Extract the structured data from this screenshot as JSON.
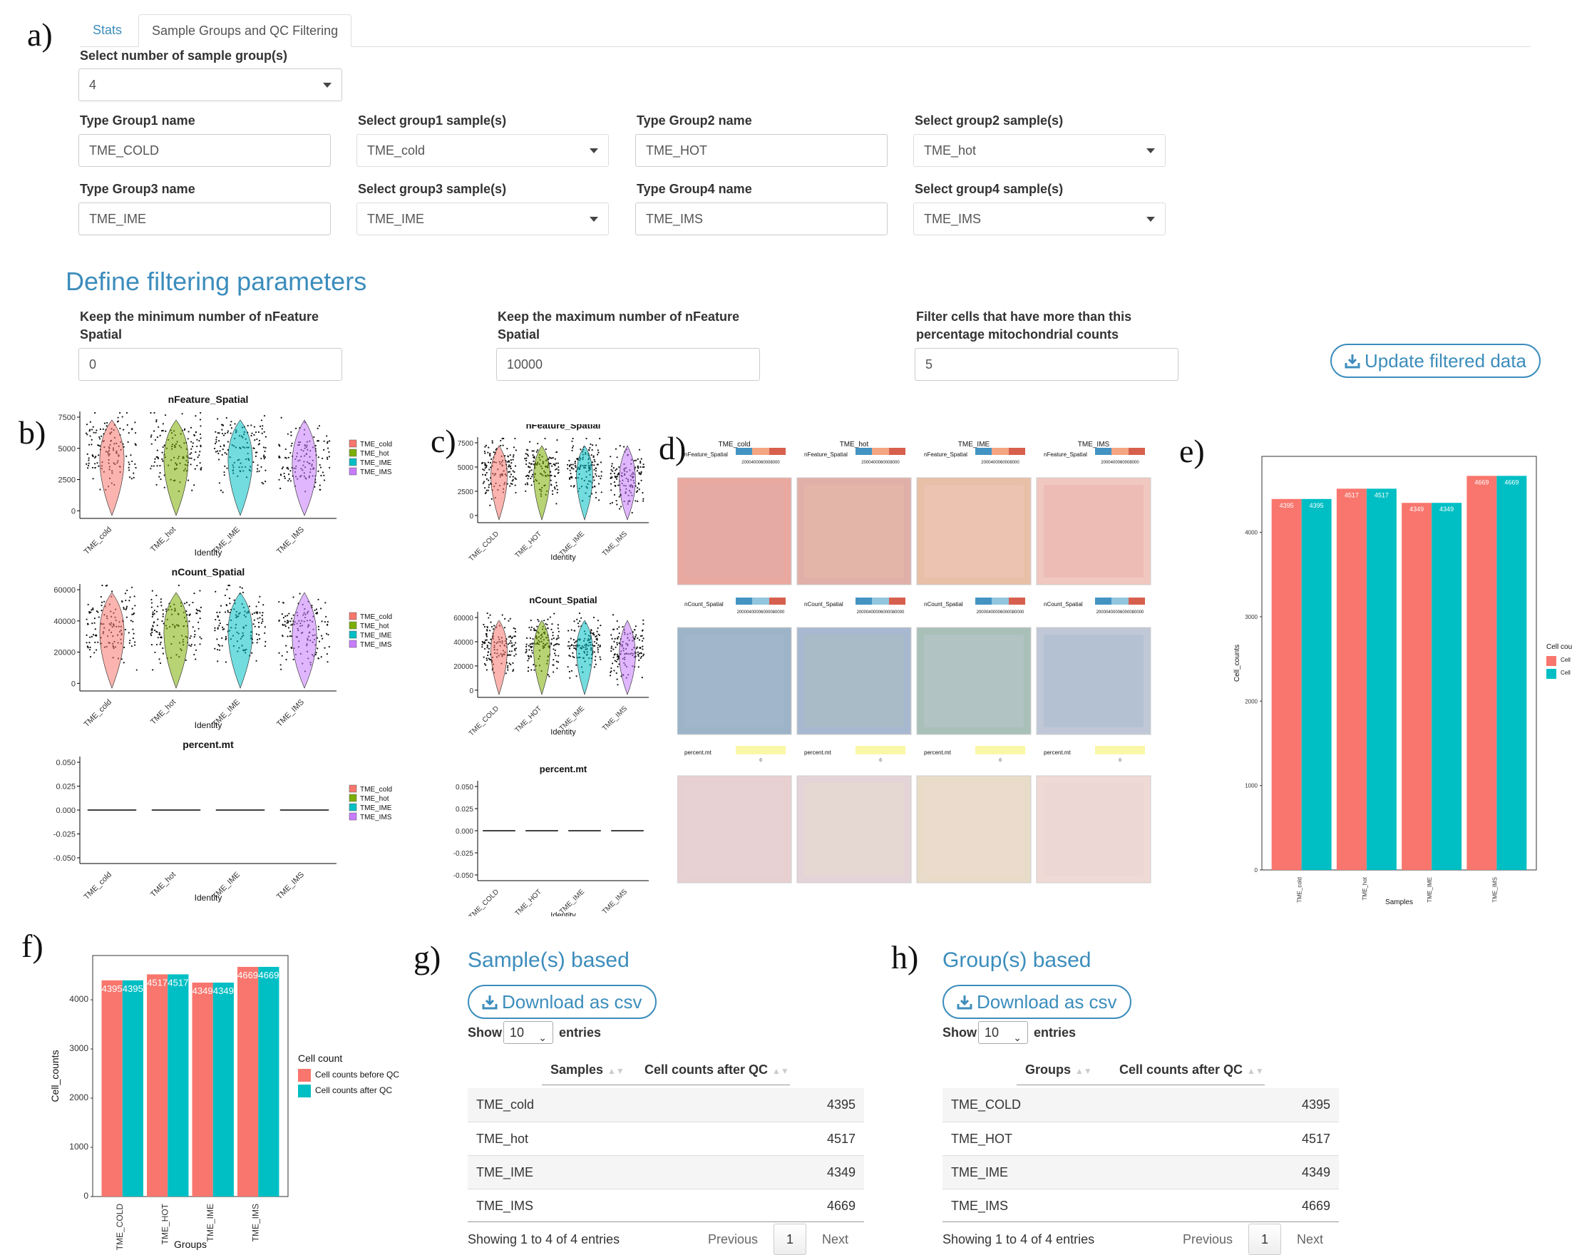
{
  "panel_labels": {
    "a": "a)",
    "b": "b)",
    "c": "c)",
    "d": "d)",
    "e": "e)",
    "f": "f)",
    "g": "g)",
    "h": "h)"
  },
  "tabs": [
    {
      "label": "Stats"
    },
    {
      "label": "Sample Groups and QC Filtering"
    }
  ],
  "group_count": {
    "label": "Select number of sample group(s)",
    "value": "4"
  },
  "groups": [
    {
      "name_label": "Type Group1 name",
      "name_value": "TME_COLD",
      "sample_label": "Select group1 sample(s)",
      "sample_value": "TME_cold"
    },
    {
      "name_label": "Type Group2 name",
      "name_value": "TME_HOT",
      "sample_label": "Select group2 sample(s)",
      "sample_value": "TME_hot"
    },
    {
      "name_label": "Type Group3 name",
      "name_value": "TME_IME",
      "sample_label": "Select group3 sample(s)",
      "sample_value": "TME_IME"
    },
    {
      "name_label": "Type Group4 name",
      "name_value": "TME_IMS",
      "sample_label": "Select group4 sample(s)",
      "sample_value": "TME_IMS"
    }
  ],
  "filtering": {
    "heading": "Define filtering parameters",
    "min_label_1": "Keep the minimum number of nFeature",
    "min_label_2": "Spatial",
    "min_value": "0",
    "max_label_1": "Keep the maximum number of nFeature",
    "max_label_2": "Spatial",
    "max_value": "10000",
    "mt_label_1": "Filter cells that have more than this",
    "mt_label_2": "percentage mitochondrial counts",
    "mt_value": "5",
    "update_button": "Update filtered data"
  },
  "violin_b": {
    "legend": [
      "TME_cold",
      "TME_hot",
      "TME_IME",
      "TME_IMS"
    ],
    "colors": [
      "#F8766D",
      "#7CAE00",
      "#00BFC4",
      "#C77CFF"
    ],
    "xlabel": "Identity",
    "plots": [
      {
        "title": "nFeature_Spatial",
        "ticks": [
          "7500",
          "5000",
          "2500",
          "0"
        ]
      },
      {
        "title": "nCount_Spatial",
        "ticks": [
          "60000",
          "40000",
          "20000",
          "0"
        ]
      },
      {
        "title": "percent.mt",
        "ticks": [
          "0.050",
          "0.025",
          "0.000",
          "-0.025",
          "-0.050"
        ]
      }
    ]
  },
  "violin_c": {
    "categories": [
      "TME_COLD",
      "TME_HOT",
      "TME_IME",
      "TME_IMS"
    ],
    "xlabel": "Identity",
    "plots": [
      {
        "title": "nFeature_Spatial",
        "ticks": [
          "7500",
          "5000",
          "2500",
          "0"
        ]
      },
      {
        "title": "nCount_Spatial",
        "ticks": [
          "60000",
          "40000",
          "20000",
          "0"
        ]
      },
      {
        "title": "percent.mt",
        "ticks": [
          "0.050",
          "0.025",
          "0.000",
          "-0.025",
          "-0.050"
        ]
      }
    ]
  },
  "spatial_d": {
    "samples": [
      "TME_cold",
      "TME_hot",
      "TME_IME",
      "TME_IMS"
    ],
    "rows": [
      {
        "feature": "nFeature_Spatial",
        "scale": "2000400060008000"
      },
      {
        "feature": "nCount_Spatial",
        "scale": "20000400006000080000"
      },
      {
        "feature": "percent.mt",
        "scale": "0"
      }
    ]
  },
  "chart_data": [
    {
      "type": "bar",
      "panel": "e",
      "categories": [
        "TME_cold",
        "TME_hot",
        "TME_IME",
        "TME_IMS"
      ],
      "series": [
        {
          "name": "Cell counts before QC",
          "values": [
            4395,
            4517,
            4349,
            4669
          ],
          "color": "#F8766D"
        },
        {
          "name": "Cell counts after QC",
          "values": [
            4395,
            4517,
            4349,
            4669
          ],
          "color": "#00BFC4"
        }
      ],
      "xlabel": "Samples",
      "ylabel": "Cell_counts",
      "legend_title": "Cell count",
      "yticks": [
        "0",
        "1000",
        "2000",
        "3000",
        "4000"
      ],
      "ylim": [
        0,
        4900
      ],
      "legend": "right"
    },
    {
      "type": "bar",
      "panel": "f",
      "categories": [
        "TME_COLD",
        "TME_HOT",
        "TME_IME",
        "TME_IMS"
      ],
      "series": [
        {
          "name": "Cell counts before QC",
          "values": [
            4395,
            4517,
            4349,
            4669
          ],
          "color": "#F8766D"
        },
        {
          "name": "Cell counts after QC",
          "values": [
            4395,
            4517,
            4349,
            4669
          ],
          "color": "#00BFC4"
        }
      ],
      "xlabel": "Groups",
      "ylabel": "Cell_counts",
      "legend_title": "Cell count",
      "yticks": [
        "0",
        "1000",
        "2000",
        "3000",
        "4000"
      ],
      "ylim": [
        0,
        4900
      ],
      "legend": "right"
    }
  ],
  "sample_table": {
    "title": "Sample(s) based",
    "download": "Download as csv",
    "show": "Show",
    "entries_value": "10",
    "entries": "entries",
    "headers": [
      "Samples",
      "Cell counts after QC"
    ],
    "rows": [
      [
        "TME_cold",
        "4395"
      ],
      [
        "TME_hot",
        "4517"
      ],
      [
        "TME_IME",
        "4349"
      ],
      [
        "TME_IMS",
        "4669"
      ]
    ],
    "info": "Showing 1 to 4 of 4 entries",
    "prev": "Previous",
    "page": "1",
    "next": "Next"
  },
  "group_table": {
    "title": "Group(s) based",
    "download": "Download as csv",
    "show": "Show",
    "entries_value": "10",
    "entries": "entries",
    "headers": [
      "Groups",
      "Cell counts after QC"
    ],
    "rows": [
      [
        "TME_COLD",
        "4395"
      ],
      [
        "TME_HOT",
        "4517"
      ],
      [
        "TME_IME",
        "4349"
      ],
      [
        "TME_IMS",
        "4669"
      ]
    ],
    "info": "Showing 1 to 4 of 4 entries",
    "prev": "Previous",
    "page": "1",
    "next": "Next"
  }
}
